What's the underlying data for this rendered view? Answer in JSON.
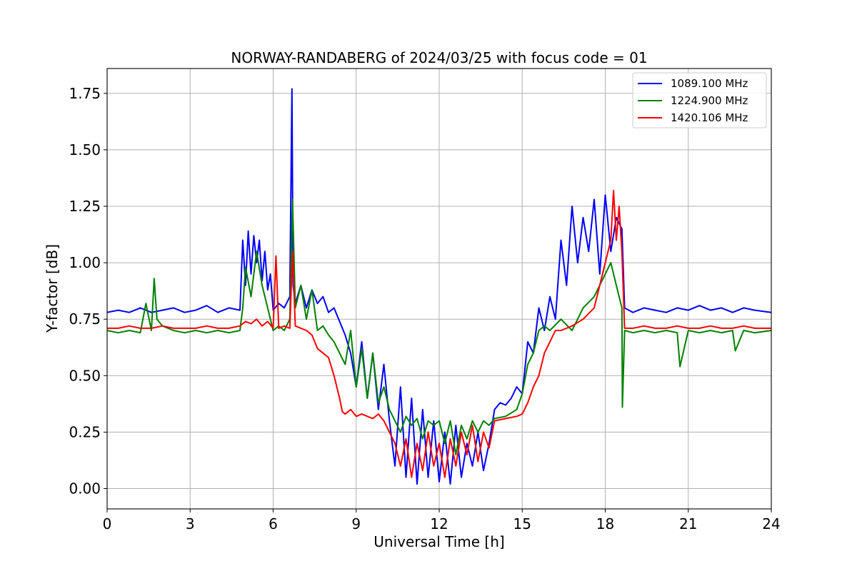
{
  "chart_data": {
    "type": "line",
    "title": "NORWAY-RANDABERG of 2024/03/25 with focus code = 01",
    "xlabel": "Universal Time [h]",
    "ylabel": "Y-factor [dB]",
    "xlim": [
      0,
      24
    ],
    "ylim": [
      -0.09,
      1.86
    ],
    "xticks": [
      0,
      3,
      6,
      9,
      12,
      15,
      18,
      21,
      24
    ],
    "xtick_labels": [
      "0",
      "3",
      "6",
      "9",
      "12",
      "15",
      "18",
      "21",
      "24"
    ],
    "yticks": [
      0.0,
      0.25,
      0.5,
      0.75,
      1.0,
      1.25,
      1.5,
      1.75
    ],
    "ytick_labels": [
      "0.00",
      "0.25",
      "0.50",
      "0.75",
      "1.00",
      "1.25",
      "1.50",
      "1.75"
    ],
    "grid": true,
    "legend_position": "top-right",
    "series": [
      {
        "name": "1089.100 MHz",
        "color": "#0000ff",
        "x": [
          0.0,
          0.4,
          0.8,
          1.2,
          1.6,
          2.0,
          2.4,
          2.8,
          3.2,
          3.6,
          4.0,
          4.4,
          4.8,
          4.9,
          5.0,
          5.1,
          5.2,
          5.3,
          5.4,
          5.5,
          5.6,
          5.7,
          5.8,
          5.9,
          6.0,
          6.2,
          6.4,
          6.6,
          6.68,
          6.72,
          6.8,
          7.0,
          7.2,
          7.4,
          7.6,
          7.8,
          8.0,
          8.2,
          8.4,
          8.6,
          8.8,
          9.0,
          9.2,
          9.4,
          9.6,
          9.8,
          10.0,
          10.2,
          10.4,
          10.6,
          10.8,
          11.0,
          11.2,
          11.4,
          11.6,
          11.8,
          12.0,
          12.2,
          12.4,
          12.6,
          12.8,
          13.0,
          13.2,
          13.4,
          13.6,
          13.8,
          14.0,
          14.2,
          14.4,
          14.6,
          14.8,
          15.0,
          15.2,
          15.4,
          15.6,
          15.8,
          16.0,
          16.2,
          16.4,
          16.6,
          16.8,
          17.0,
          17.2,
          17.4,
          17.6,
          17.8,
          18.0,
          18.2,
          18.4,
          18.6,
          18.7,
          19.0,
          19.4,
          19.8,
          20.2,
          20.6,
          21.0,
          21.4,
          21.8,
          22.2,
          22.6,
          23.0,
          23.4,
          24.0
        ],
        "y": [
          0.78,
          0.79,
          0.78,
          0.8,
          0.78,
          0.79,
          0.8,
          0.78,
          0.79,
          0.81,
          0.78,
          0.8,
          0.79,
          1.1,
          0.9,
          1.14,
          0.95,
          1.12,
          1.0,
          1.1,
          0.92,
          1.05,
          0.88,
          0.95,
          0.79,
          0.82,
          0.8,
          0.85,
          1.77,
          0.9,
          0.82,
          0.9,
          0.8,
          0.88,
          0.82,
          0.85,
          0.78,
          0.8,
          0.74,
          0.68,
          0.6,
          0.45,
          0.65,
          0.4,
          0.6,
          0.35,
          0.55,
          0.3,
          0.1,
          0.45,
          0.05,
          0.4,
          0.02,
          0.35,
          0.05,
          0.3,
          0.03,
          0.25,
          0.02,
          0.28,
          0.05,
          0.2,
          0.1,
          0.25,
          0.08,
          0.2,
          0.35,
          0.38,
          0.37,
          0.4,
          0.45,
          0.42,
          0.65,
          0.6,
          0.8,
          0.7,
          0.85,
          0.75,
          1.1,
          0.9,
          1.25,
          1.0,
          1.2,
          1.05,
          1.28,
          0.95,
          1.3,
          1.05,
          1.2,
          1.15,
          0.8,
          0.78,
          0.8,
          0.79,
          0.78,
          0.8,
          0.79,
          0.81,
          0.79,
          0.8,
          0.78,
          0.8,
          0.79,
          0.78
        ]
      },
      {
        "name": "1224.900 MHz",
        "color": "#008000",
        "x": [
          0.0,
          0.4,
          0.8,
          1.2,
          1.4,
          1.6,
          1.7,
          1.8,
          2.0,
          2.4,
          2.8,
          3.2,
          3.6,
          4.0,
          4.4,
          4.8,
          4.9,
          5.0,
          5.2,
          5.4,
          5.6,
          5.8,
          6.0,
          6.2,
          6.4,
          6.6,
          6.7,
          6.8,
          7.0,
          7.2,
          7.4,
          7.6,
          7.8,
          8.0,
          8.2,
          8.4,
          8.6,
          8.8,
          9.0,
          9.2,
          9.4,
          9.6,
          9.8,
          10.0,
          10.2,
          10.4,
          10.6,
          10.8,
          11.0,
          11.2,
          11.4,
          11.6,
          11.8,
          12.0,
          12.2,
          12.4,
          12.6,
          12.8,
          13.0,
          13.2,
          13.4,
          13.6,
          13.8,
          14.0,
          14.4,
          14.8,
          15.0,
          15.2,
          15.4,
          15.6,
          15.8,
          16.0,
          16.4,
          16.8,
          17.2,
          17.6,
          18.0,
          18.2,
          18.4,
          18.6,
          18.62,
          18.7,
          19.0,
          19.4,
          19.8,
          20.2,
          20.6,
          20.7,
          21.0,
          21.4,
          21.8,
          22.2,
          22.6,
          22.7,
          23.0,
          23.4,
          24.0
        ],
        "y": [
          0.7,
          0.69,
          0.7,
          0.69,
          0.82,
          0.7,
          0.93,
          0.75,
          0.72,
          0.7,
          0.69,
          0.7,
          0.69,
          0.7,
          0.69,
          0.7,
          0.8,
          0.98,
          0.85,
          1.05,
          0.9,
          0.8,
          0.7,
          0.72,
          0.7,
          0.75,
          1.28,
          0.8,
          0.9,
          0.75,
          0.88,
          0.7,
          0.72,
          0.68,
          0.65,
          0.6,
          0.55,
          0.7,
          0.45,
          0.62,
          0.4,
          0.6,
          0.38,
          0.45,
          0.35,
          0.3,
          0.25,
          0.32,
          0.28,
          0.31,
          0.22,
          0.3,
          0.28,
          0.3,
          0.2,
          0.3,
          0.15,
          0.28,
          0.22,
          0.3,
          0.25,
          0.3,
          0.28,
          0.31,
          0.32,
          0.35,
          0.42,
          0.55,
          0.6,
          0.7,
          0.72,
          0.7,
          0.75,
          0.7,
          0.8,
          0.85,
          0.95,
          1.0,
          0.9,
          0.8,
          0.36,
          0.7,
          0.69,
          0.7,
          0.69,
          0.7,
          0.69,
          0.54,
          0.7,
          0.69,
          0.7,
          0.69,
          0.7,
          0.61,
          0.7,
          0.69,
          0.7
        ]
      },
      {
        "name": "1420.106 MHz",
        "color": "#ff0000",
        "x": [
          0.0,
          0.4,
          0.8,
          1.2,
          1.6,
          2.0,
          2.4,
          2.8,
          3.2,
          3.6,
          4.0,
          4.4,
          4.8,
          5.0,
          5.2,
          5.4,
          5.6,
          5.8,
          6.0,
          6.1,
          6.2,
          6.4,
          6.6,
          6.7,
          6.8,
          7.0,
          7.2,
          7.4,
          7.6,
          7.8,
          8.0,
          8.2,
          8.4,
          8.5,
          8.6,
          8.8,
          9.0,
          9.2,
          9.4,
          9.6,
          9.8,
          10.0,
          10.2,
          10.4,
          10.6,
          10.8,
          11.0,
          11.2,
          11.4,
          11.6,
          11.8,
          12.0,
          12.2,
          12.4,
          12.6,
          12.8,
          13.0,
          13.2,
          13.4,
          13.6,
          13.8,
          14.0,
          14.4,
          14.8,
          15.0,
          15.2,
          15.4,
          15.6,
          15.8,
          16.0,
          16.2,
          16.4,
          16.8,
          17.2,
          17.6,
          17.8,
          18.0,
          18.2,
          18.3,
          18.4,
          18.5,
          18.6,
          18.7,
          19.0,
          19.4,
          19.8,
          20.2,
          20.6,
          21.0,
          21.4,
          21.8,
          22.2,
          22.6,
          23.0,
          23.4,
          24.0
        ],
        "y": [
          0.71,
          0.71,
          0.72,
          0.71,
          0.71,
          0.72,
          0.71,
          0.71,
          0.71,
          0.72,
          0.71,
          0.71,
          0.72,
          0.74,
          0.73,
          0.75,
          0.72,
          0.74,
          0.71,
          1.03,
          0.71,
          0.72,
          0.71,
          1.05,
          0.72,
          0.71,
          0.7,
          0.68,
          0.62,
          0.6,
          0.58,
          0.5,
          0.4,
          0.34,
          0.33,
          0.35,
          0.32,
          0.33,
          0.32,
          0.31,
          0.33,
          0.3,
          0.25,
          0.2,
          0.1,
          0.22,
          0.05,
          0.2,
          0.08,
          0.25,
          0.1,
          0.2,
          0.05,
          0.22,
          0.1,
          0.25,
          0.15,
          0.28,
          0.12,
          0.25,
          0.18,
          0.3,
          0.31,
          0.32,
          0.33,
          0.38,
          0.45,
          0.5,
          0.6,
          0.65,
          0.7,
          0.7,
          0.72,
          0.75,
          0.8,
          0.9,
          1.0,
          1.1,
          1.32,
          1.1,
          1.25,
          1.05,
          0.71,
          0.71,
          0.72,
          0.71,
          0.71,
          0.72,
          0.71,
          0.71,
          0.72,
          0.71,
          0.71,
          0.72,
          0.71,
          0.71
        ]
      }
    ]
  }
}
